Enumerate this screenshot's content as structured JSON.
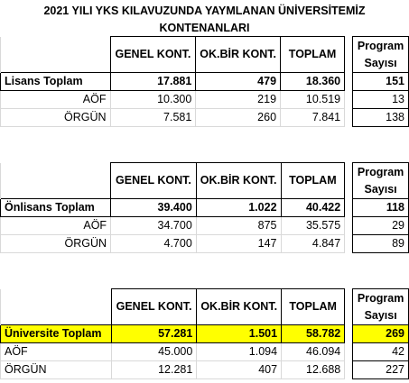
{
  "title_line1": "2021 YILI YKS KILAVUZUNDA YAYMLANAN ÜNİVERSİTEMİZ",
  "title_line2": "KONTENANLARI",
  "headers": {
    "genel": "GENEL KONT.",
    "okbir": "OK.BİR KONT.",
    "toplam": "TOPLAM",
    "program_line1": "Program",
    "program_line2": "Sayısı"
  },
  "sections": [
    {
      "total_label": "Lisans Toplam",
      "total": {
        "genel": "17.881",
        "okbir": "479",
        "toplam": "18.360",
        "program": "151"
      },
      "rows": [
        {
          "label": "AÖF",
          "genel": "10.300",
          "okbir": "219",
          "toplam": "10.519",
          "program": "13"
        },
        {
          "label": "ÖRGÜN",
          "genel": "7.581",
          "okbir": "260",
          "toplam": "7.841",
          "program": "138"
        }
      ]
    },
    {
      "total_label": "Önlisans Toplam",
      "total": {
        "genel": "39.400",
        "okbir": "1.022",
        "toplam": "40.422",
        "program": "118"
      },
      "rows": [
        {
          "label": "AÖF",
          "genel": "34.700",
          "okbir": "875",
          "toplam": "35.575",
          "program": "29"
        },
        {
          "label": "ÖRGÜN",
          "genel": "4.700",
          "okbir": "147",
          "toplam": "4.847",
          "program": "89"
        }
      ]
    },
    {
      "total_label": "Üniversite Toplam",
      "total": {
        "genel": "57.281",
        "okbir": "1.501",
        "toplam": "58.782",
        "program": "269"
      },
      "rows": [
        {
          "label": "AÖF",
          "genel": "45.000",
          "okbir": "1.094",
          "toplam": "46.094",
          "program": "42"
        },
        {
          "label": "ÖRGÜN",
          "genel": "12.281",
          "okbir": "407",
          "toplam": "12.688",
          "program": "227"
        }
      ]
    }
  ],
  "colors": {
    "highlight": "#ffff00"
  }
}
